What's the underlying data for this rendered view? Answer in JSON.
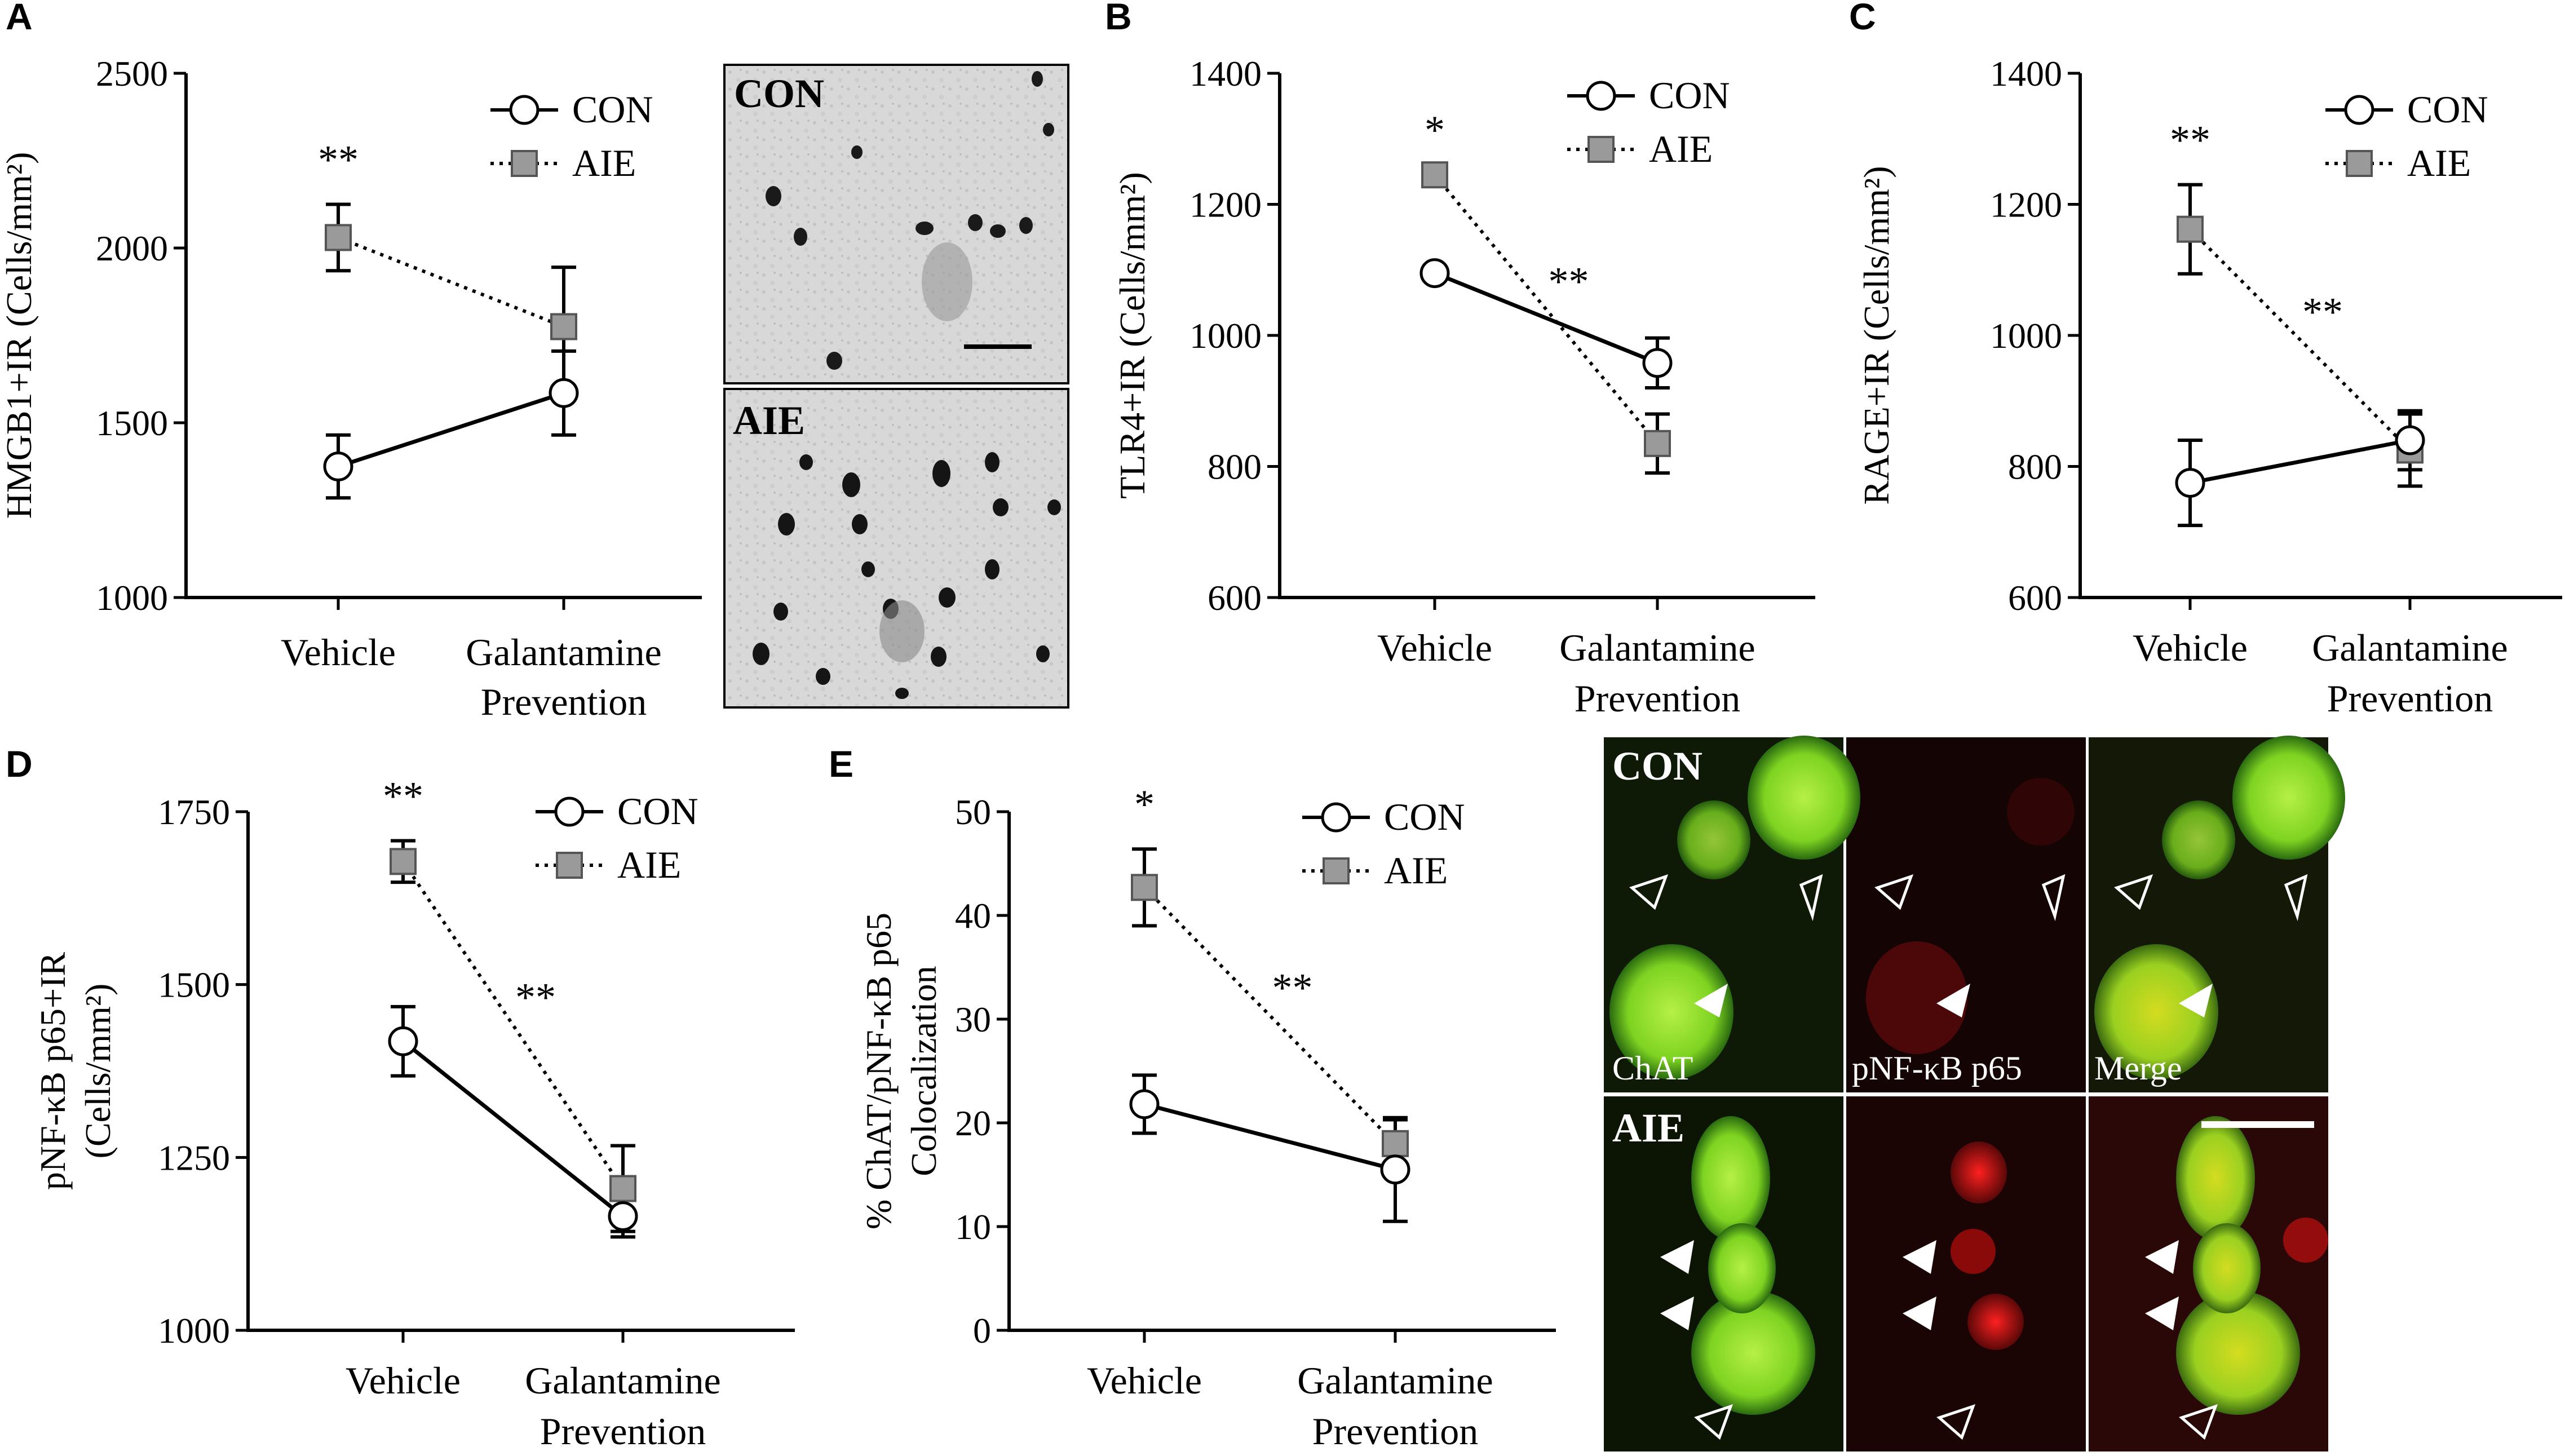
{
  "chart_data": [
    {
      "panel": "A",
      "type": "line",
      "categories": [
        "Vehicle",
        "Galantamine Prevention"
      ],
      "ylabel": "HMGB1+IR (Cells/mm²)",
      "ylim": [
        1000,
        2500
      ],
      "yticks": [
        1000,
        1500,
        2000,
        2500
      ],
      "series": [
        {
          "name": "CON",
          "values": [
            1375,
            1585
          ],
          "errors": [
            90,
            120
          ],
          "line": "solid",
          "marker": "open-circle"
        },
        {
          "name": "AIE",
          "values": [
            2030,
            1775
          ],
          "errors": [
            95,
            170
          ],
          "line": "dotted",
          "marker": "gray-square"
        }
      ],
      "annotations": [
        {
          "text": "**",
          "category": 0
        }
      ]
    },
    {
      "panel": "B",
      "type": "line",
      "categories": [
        "Vehicle",
        "Galantamine Prevention"
      ],
      "ylabel": "TLR4+IR (Cells/mm²)",
      "ylim": [
        600,
        1400
      ],
      "yticks": [
        600,
        800,
        1000,
        1200,
        1400
      ],
      "series": [
        {
          "name": "CON",
          "values": [
            1095,
            958
          ],
          "errors": [
            0,
            38
          ],
          "line": "solid",
          "marker": "open-circle"
        },
        {
          "name": "AIE",
          "values": [
            1245,
            835
          ],
          "errors": [
            0,
            45
          ],
          "line": "dotted",
          "marker": "gray-square"
        }
      ],
      "annotations": [
        {
          "text": "*",
          "category": 0
        },
        {
          "text": "**",
          "category": "between"
        }
      ]
    },
    {
      "panel": "C",
      "type": "line",
      "categories": [
        "Vehicle",
        "Galantamine Prevention"
      ],
      "ylabel": "RAGE+IR (Cells/mm²)",
      "ylim": [
        600,
        1400
      ],
      "yticks": [
        600,
        800,
        1000,
        1200,
        1400
      ],
      "series": [
        {
          "name": "CON",
          "values": [
            775,
            840
          ],
          "errors": [
            65,
            45
          ],
          "line": "solid",
          "marker": "open-circle"
        },
        {
          "name": "AIE",
          "values": [
            1162,
            825
          ],
          "errors": [
            68,
            55
          ],
          "line": "dotted",
          "marker": "gray-square"
        }
      ],
      "annotations": [
        {
          "text": "**",
          "category": 0
        },
        {
          "text": "**",
          "category": "between"
        }
      ]
    },
    {
      "panel": "D",
      "type": "line",
      "categories": [
        "Vehicle",
        "Galantamine Prevention"
      ],
      "ylabel": "pNF-κB p65+IR (Cells/mm²)",
      "ylim": [
        1000,
        1750
      ],
      "yticks": [
        1000,
        1250,
        1500,
        1750
      ],
      "series": [
        {
          "name": "CON",
          "values": [
            1418,
            1165
          ],
          "errors": [
            50,
            30
          ],
          "line": "solid",
          "marker": "open-circle"
        },
        {
          "name": "AIE",
          "values": [
            1678,
            1205
          ],
          "errors": [
            30,
            62
          ],
          "line": "dotted",
          "marker": "gray-square"
        }
      ],
      "annotations": [
        {
          "text": "**",
          "category": 0
        },
        {
          "text": "**",
          "category": "between"
        }
      ]
    },
    {
      "panel": "E",
      "type": "line",
      "categories": [
        "Vehicle",
        "Galantamine Prevention"
      ],
      "ylabel": "% ChAT/pNF-κB p65 Colocalization",
      "ylim": [
        0,
        50
      ],
      "yticks": [
        0,
        10,
        20,
        30,
        40,
        50
      ],
      "series": [
        {
          "name": "CON",
          "values": [
            21.8,
            15.5
          ],
          "errors": [
            2.8,
            5.0
          ],
          "line": "solid",
          "marker": "open-circle"
        },
        {
          "name": "AIE",
          "values": [
            42.7,
            18.0
          ],
          "errors": [
            3.7,
            2.3
          ],
          "line": "dotted",
          "marker": "gray-square"
        }
      ],
      "annotations": [
        {
          "text": "*",
          "category": 0
        },
        {
          "text": "**",
          "category": "between"
        }
      ]
    }
  ],
  "micrographs": {
    "A": {
      "top_label": "CON",
      "bottom_label": "AIE"
    },
    "E": {
      "row_labels": [
        "CON",
        "AIE"
      ],
      "channel_labels": [
        "ChAT",
        "pNF-κB p65",
        "Merge"
      ]
    }
  },
  "colors": {
    "con_marker": "#ffffff",
    "aie_marker": "#9a9a9a",
    "axis": "#000000",
    "chat_green": "#7ed321",
    "pnfkb_red": "#b01010",
    "merge_yellow": "#c8d820"
  }
}
